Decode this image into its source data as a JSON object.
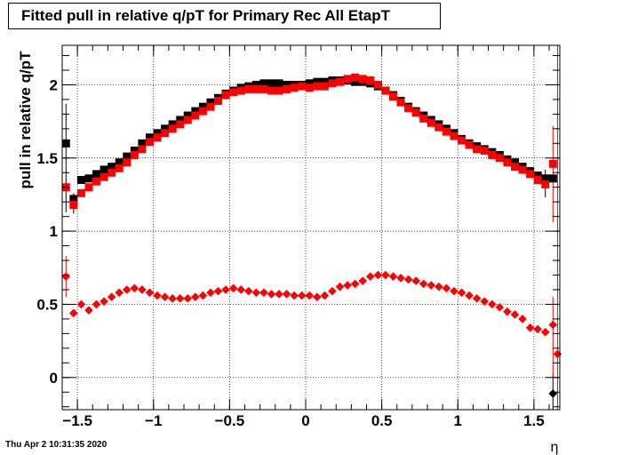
{
  "chart_data": {
    "type": "scatter",
    "title": "Fitted pull in relative q/pT  for Primary Rec All EtapT",
    "xlabel": "η",
    "ylabel": "pull in relative q/pT",
    "xlim": [
      -1.6,
      1.67
    ],
    "ylim": [
      -0.22,
      2.27
    ],
    "grid": true,
    "x_ticks": [
      -1.5,
      -1,
      -0.5,
      0,
      0.5,
      1,
      1.5
    ],
    "x_tick_labels": [
      "−1.5",
      "−1",
      "−0.5",
      "0",
      "0.5",
      "1",
      "1.5"
    ],
    "y_ticks": [
      0,
      0.5,
      1,
      1.5,
      2
    ],
    "y_tick_labels": [
      "0",
      "0.5",
      "1",
      "1.5",
      "2"
    ],
    "timestamp": "Thu Apr  2 10:31:35 2020",
    "series": [
      {
        "marker": "square",
        "color": "#000000",
        "points": [
          [
            -1.575,
            1.6
          ],
          [
            -1.525,
            1.22
          ],
          [
            -1.475,
            1.35
          ],
          [
            -1.425,
            1.36
          ],
          [
            -1.375,
            1.39
          ],
          [
            -1.325,
            1.42
          ],
          [
            -1.275,
            1.44
          ],
          [
            -1.225,
            1.47
          ],
          [
            -1.175,
            1.51
          ],
          [
            -1.125,
            1.55
          ],
          [
            -1.075,
            1.6
          ],
          [
            -1.025,
            1.64
          ],
          [
            -0.975,
            1.67
          ],
          [
            -0.925,
            1.7
          ],
          [
            -0.875,
            1.73
          ],
          [
            -0.825,
            1.76
          ],
          [
            -0.775,
            1.79
          ],
          [
            -0.725,
            1.82
          ],
          [
            -0.675,
            1.85
          ],
          [
            -0.625,
            1.88
          ],
          [
            -0.575,
            1.91
          ],
          [
            -0.525,
            1.94
          ],
          [
            -0.475,
            1.96
          ],
          [
            -0.425,
            1.98
          ],
          [
            -0.375,
            1.99
          ],
          [
            -0.325,
            2.0
          ],
          [
            -0.275,
            2.01
          ],
          [
            -0.225,
            2.01
          ],
          [
            -0.175,
            2.01
          ],
          [
            -0.125,
            2.0
          ],
          [
            -0.075,
            2.0
          ],
          [
            -0.025,
            2.0
          ],
          [
            0.025,
            2.01
          ],
          [
            0.075,
            2.02
          ],
          [
            0.125,
            2.02
          ],
          [
            0.175,
            2.03
          ],
          [
            0.225,
            2.03
          ],
          [
            0.275,
            2.03
          ],
          [
            0.325,
            2.02
          ],
          [
            0.375,
            2.02
          ],
          [
            0.425,
            2.01
          ],
          [
            0.475,
            1.99
          ],
          [
            0.525,
            1.96
          ],
          [
            0.575,
            1.93
          ],
          [
            0.625,
            1.89
          ],
          [
            0.675,
            1.85
          ],
          [
            0.725,
            1.82
          ],
          [
            0.775,
            1.79
          ],
          [
            0.825,
            1.76
          ],
          [
            0.875,
            1.73
          ],
          [
            0.925,
            1.7
          ],
          [
            0.975,
            1.67
          ],
          [
            1.025,
            1.63
          ],
          [
            1.075,
            1.6
          ],
          [
            1.125,
            1.58
          ],
          [
            1.175,
            1.56
          ],
          [
            1.225,
            1.54
          ],
          [
            1.275,
            1.52
          ],
          [
            1.325,
            1.49
          ],
          [
            1.375,
            1.47
          ],
          [
            1.425,
            1.44
          ],
          [
            1.475,
            1.41
          ],
          [
            1.525,
            1.38
          ],
          [
            1.575,
            1.36
          ],
          [
            1.625,
            1.36
          ]
        ]
      },
      {
        "marker": "square",
        "color": "#ff0000",
        "points": [
          [
            -1.575,
            1.3
          ],
          [
            -1.525,
            1.18
          ],
          [
            -1.475,
            1.26
          ],
          [
            -1.425,
            1.3
          ],
          [
            -1.375,
            1.34
          ],
          [
            -1.325,
            1.37
          ],
          [
            -1.275,
            1.4
          ],
          [
            -1.225,
            1.43
          ],
          [
            -1.175,
            1.47
          ],
          [
            -1.125,
            1.52
          ],
          [
            -1.075,
            1.56
          ],
          [
            -1.025,
            1.61
          ],
          [
            -0.975,
            1.64
          ],
          [
            -0.925,
            1.67
          ],
          [
            -0.875,
            1.7
          ],
          [
            -0.825,
            1.73
          ],
          [
            -0.775,
            1.76
          ],
          [
            -0.725,
            1.79
          ],
          [
            -0.675,
            1.82
          ],
          [
            -0.625,
            1.85
          ],
          [
            -0.575,
            1.89
          ],
          [
            -0.525,
            1.93
          ],
          [
            -0.475,
            1.95
          ],
          [
            -0.425,
            1.96
          ],
          [
            -0.375,
            1.97
          ],
          [
            -0.325,
            1.97
          ],
          [
            -0.275,
            1.97
          ],
          [
            -0.225,
            1.96
          ],
          [
            -0.175,
            1.96
          ],
          [
            -0.125,
            1.97
          ],
          [
            -0.075,
            1.98
          ],
          [
            -0.025,
            1.99
          ],
          [
            0.025,
            1.98
          ],
          [
            0.075,
            1.99
          ],
          [
            0.125,
            1.99
          ],
          [
            0.175,
            2.01
          ],
          [
            0.225,
            2.02
          ],
          [
            0.275,
            2.04
          ],
          [
            0.325,
            2.05
          ],
          [
            0.375,
            2.04
          ],
          [
            0.425,
            2.03
          ],
          [
            0.475,
            2.0
          ],
          [
            0.525,
            1.96
          ],
          [
            0.575,
            1.92
          ],
          [
            0.625,
            1.88
          ],
          [
            0.675,
            1.84
          ],
          [
            0.725,
            1.81
          ],
          [
            0.775,
            1.77
          ],
          [
            0.825,
            1.74
          ],
          [
            0.875,
            1.71
          ],
          [
            0.925,
            1.68
          ],
          [
            0.975,
            1.65
          ],
          [
            1.025,
            1.62
          ],
          [
            1.075,
            1.59
          ],
          [
            1.125,
            1.56
          ],
          [
            1.175,
            1.55
          ],
          [
            1.225,
            1.52
          ],
          [
            1.275,
            1.5
          ],
          [
            1.325,
            1.47
          ],
          [
            1.375,
            1.44
          ],
          [
            1.425,
            1.42
          ],
          [
            1.475,
            1.39
          ],
          [
            1.525,
            1.35
          ],
          [
            1.575,
            1.32
          ],
          [
            1.625,
            1.46
          ]
        ]
      },
      {
        "marker": "diamond",
        "color": "#000000",
        "points": [
          [
            1.625,
            -0.11
          ]
        ]
      },
      {
        "marker": "diamond",
        "color": "#ff0000",
        "points": [
          [
            -1.575,
            0.69
          ],
          [
            -1.525,
            0.44
          ],
          [
            -1.475,
            0.5
          ],
          [
            -1.425,
            0.46
          ],
          [
            -1.375,
            0.5
          ],
          [
            -1.325,
            0.52
          ],
          [
            -1.275,
            0.55
          ],
          [
            -1.225,
            0.58
          ],
          [
            -1.175,
            0.6
          ],
          [
            -1.125,
            0.61
          ],
          [
            -1.075,
            0.6
          ],
          [
            -1.025,
            0.58
          ],
          [
            -0.975,
            0.56
          ],
          [
            -0.925,
            0.55
          ],
          [
            -0.875,
            0.54
          ],
          [
            -0.825,
            0.54
          ],
          [
            -0.775,
            0.54
          ],
          [
            -0.725,
            0.55
          ],
          [
            -0.675,
            0.56
          ],
          [
            -0.625,
            0.58
          ],
          [
            -0.575,
            0.59
          ],
          [
            -0.525,
            0.6
          ],
          [
            -0.475,
            0.61
          ],
          [
            -0.425,
            0.6
          ],
          [
            -0.375,
            0.59
          ],
          [
            -0.325,
            0.58
          ],
          [
            -0.275,
            0.58
          ],
          [
            -0.225,
            0.57
          ],
          [
            -0.175,
            0.57
          ],
          [
            -0.125,
            0.57
          ],
          [
            -0.075,
            0.56
          ],
          [
            -0.025,
            0.56
          ],
          [
            0.025,
            0.56
          ],
          [
            0.075,
            0.55
          ],
          [
            0.125,
            0.56
          ],
          [
            0.175,
            0.59
          ],
          [
            0.225,
            0.62
          ],
          [
            0.275,
            0.63
          ],
          [
            0.325,
            0.64
          ],
          [
            0.375,
            0.66
          ],
          [
            0.425,
            0.69
          ],
          [
            0.475,
            0.7
          ],
          [
            0.525,
            0.7
          ],
          [
            0.575,
            0.69
          ],
          [
            0.625,
            0.68
          ],
          [
            0.675,
            0.67
          ],
          [
            0.725,
            0.66
          ],
          [
            0.775,
            0.64
          ],
          [
            0.825,
            0.63
          ],
          [
            0.875,
            0.62
          ],
          [
            0.925,
            0.61
          ],
          [
            0.975,
            0.59
          ],
          [
            1.025,
            0.58
          ],
          [
            1.075,
            0.56
          ],
          [
            1.125,
            0.54
          ],
          [
            1.175,
            0.52
          ],
          [
            1.225,
            0.5
          ],
          [
            1.275,
            0.48
          ],
          [
            1.325,
            0.45
          ],
          [
            1.375,
            0.43
          ],
          [
            1.425,
            0.4
          ],
          [
            1.475,
            0.34
          ],
          [
            1.525,
            0.33
          ],
          [
            1.575,
            0.31
          ],
          [
            1.625,
            0.36
          ],
          [
            1.655,
            0.16
          ]
        ]
      }
    ],
    "error_bars": [
      {
        "x": -1.575,
        "lo": 1.13,
        "hi": 1.87,
        "color": "#000000"
      },
      {
        "x": -1.575,
        "lo": 0.55,
        "hi": 0.83,
        "color": "#ff0000"
      },
      {
        "x": -1.525,
        "lo": 1.12,
        "hi": 1.26,
        "color": "#000000"
      },
      {
        "x": 1.575,
        "lo": 1.23,
        "hi": 1.42,
        "color": "#000000"
      },
      {
        "x": 1.625,
        "lo": 1.06,
        "hi": 1.72,
        "color": "#ff0000"
      },
      {
        "x": 1.625,
        "lo": -0.22,
        "hi": 0.02,
        "color": "#000000"
      },
      {
        "x": 1.625,
        "lo": 0.0,
        "hi": 0.55,
        "color": "#ff0000"
      },
      {
        "x": 1.655,
        "lo": -0.22,
        "hi": 2.27,
        "color": "#ff0000"
      }
    ]
  }
}
